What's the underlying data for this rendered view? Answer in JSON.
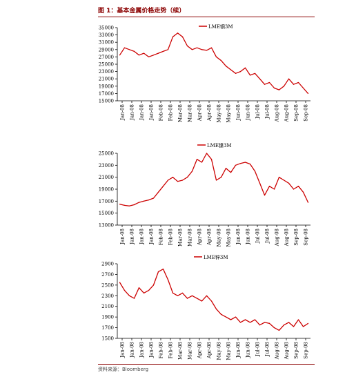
{
  "header": {
    "title": "图 1：基本金属价格走势（续）"
  },
  "footer": {
    "source": "资料来源：Bloomberg"
  },
  "colors": {
    "series": "#cc0000",
    "rule": "#8b0000"
  },
  "chart_data": [
    {
      "type": "line",
      "legend": "LME铜3M",
      "legend_position": "top-right",
      "grid": false,
      "ylim": [
        15000,
        35000
      ],
      "yticks": [
        "35000",
        "33000",
        "31000",
        "29000",
        "27000",
        "25000",
        "23000",
        "21000",
        "19000",
        "17000",
        "15000"
      ],
      "xticks": [
        "Jan-08",
        "Jan-08",
        "Jan-08",
        "Jan-08",
        "Feb-08",
        "Feb-08",
        "Mar-08",
        "Mar-08",
        "Apr-08",
        "Apr-08",
        "May-08",
        "May-08",
        "Jun-08",
        "Jun-08",
        "Jul-08",
        "Jul-08",
        "Aug-08",
        "Aug-08",
        "Sep-08",
        "Sep-08"
      ],
      "series": [
        {
          "name": "LME铜3M",
          "x": [
            0,
            0.5,
            1,
            1.5,
            2,
            2.5,
            3,
            3.5,
            4,
            4.5,
            5,
            5.5,
            6,
            6.5,
            7,
            7.5,
            8,
            8.5,
            9,
            9.5,
            10,
            10.5,
            11,
            11.5,
            12,
            12.5,
            13,
            13.5,
            14,
            14.5,
            15,
            15.5,
            16,
            16.5,
            17,
            17.5,
            18,
            18.5,
            19,
            19.5
          ],
          "values": [
            27500,
            29500,
            29000,
            28500,
            27500,
            28000,
            27000,
            27500,
            28000,
            28500,
            29000,
            32500,
            33500,
            32500,
            30000,
            29000,
            29500,
            29000,
            28800,
            29500,
            27000,
            26000,
            24500,
            23500,
            22500,
            23000,
            24000,
            22000,
            22500,
            21000,
            19500,
            20000,
            18500,
            18000,
            19000,
            21000,
            19500,
            20000,
            18500,
            17000
          ]
        }
      ]
    },
    {
      "type": "line",
      "legend": "LME镍3M",
      "legend_position": "top-center",
      "grid": false,
      "ylim": [
        13000,
        25000
      ],
      "yticks": [
        "25000",
        "23000",
        "21000",
        "19000",
        "17000",
        "15000",
        "13000"
      ],
      "xticks": [
        "Jan-08",
        "Jan-08",
        "Jan-08",
        "Jan-08",
        "Feb-08",
        "Feb-08",
        "Mar-08",
        "Mar-08",
        "Apr-08",
        "Apr-08",
        "May-08",
        "May-08",
        "Jun-08",
        "Jun-08",
        "Jul-08",
        "Jul-08",
        "Aug-08",
        "Aug-08",
        "Sep-08",
        "Sep-08"
      ],
      "series": [
        {
          "name": "LME镍3M",
          "x": [
            0,
            0.5,
            1,
            1.5,
            2,
            2.5,
            3,
            3.5,
            4,
            4.5,
            5,
            5.5,
            6,
            6.5,
            7,
            7.5,
            8,
            8.5,
            9,
            9.5,
            10,
            10.5,
            11,
            11.5,
            12,
            12.5,
            13,
            13.5,
            14,
            14.5,
            15,
            15.5,
            16,
            16.5,
            17,
            17.5,
            18,
            18.5,
            19,
            19.5
          ],
          "values": [
            16500,
            16300,
            16200,
            16400,
            16800,
            17000,
            17200,
            17500,
            18500,
            19500,
            20500,
            21000,
            20300,
            20500,
            21000,
            22000,
            24000,
            23500,
            25000,
            24000,
            20500,
            21000,
            22500,
            21800,
            23000,
            23300,
            23500,
            23200,
            22000,
            20000,
            18000,
            19500,
            19000,
            21000,
            20500,
            20000,
            19000,
            19500,
            18500,
            16800
          ]
        }
      ]
    },
    {
      "type": "line",
      "legend": "LME锌3M",
      "legend_position": "top-center",
      "grid": false,
      "ylim": [
        1500,
        2900
      ],
      "yticks": [
        "2900",
        "2700",
        "2500",
        "2300",
        "2100",
        "1900",
        "1700",
        "1500"
      ],
      "xticks": [
        "Jan-08",
        "Jan-08",
        "Jan-08",
        "Jan-08",
        "Feb-08",
        "Feb-08",
        "Mar-08",
        "Mar-08",
        "Apr-08",
        "Apr-08",
        "May-08",
        "May-08",
        "Jun-08",
        "Jun-08",
        "Jul-08",
        "Jul-08",
        "Aug-08",
        "Aug-08",
        "Sep-08",
        "Sep-08"
      ],
      "series": [
        {
          "name": "LME锌3M",
          "x": [
            0,
            0.5,
            1,
            1.5,
            2,
            2.5,
            3,
            3.5,
            4,
            4.5,
            5,
            5.5,
            6,
            6.5,
            7,
            7.5,
            8,
            8.5,
            9,
            9.5,
            10,
            10.5,
            11,
            11.5,
            12,
            12.5,
            13,
            13.5,
            14,
            14.5,
            15,
            15.5,
            16,
            16.5,
            17,
            17.5,
            18,
            18.5,
            19,
            19.5
          ],
          "values": [
            2550,
            2400,
            2300,
            2250,
            2450,
            2350,
            2400,
            2500,
            2750,
            2800,
            2600,
            2350,
            2300,
            2350,
            2250,
            2300,
            2250,
            2200,
            2300,
            2200,
            2050,
            1950,
            1900,
            1850,
            1900,
            1800,
            1850,
            1800,
            1850,
            1750,
            1800,
            1780,
            1700,
            1650,
            1750,
            1800,
            1720,
            1850,
            1720,
            1780
          ]
        }
      ]
    }
  ]
}
